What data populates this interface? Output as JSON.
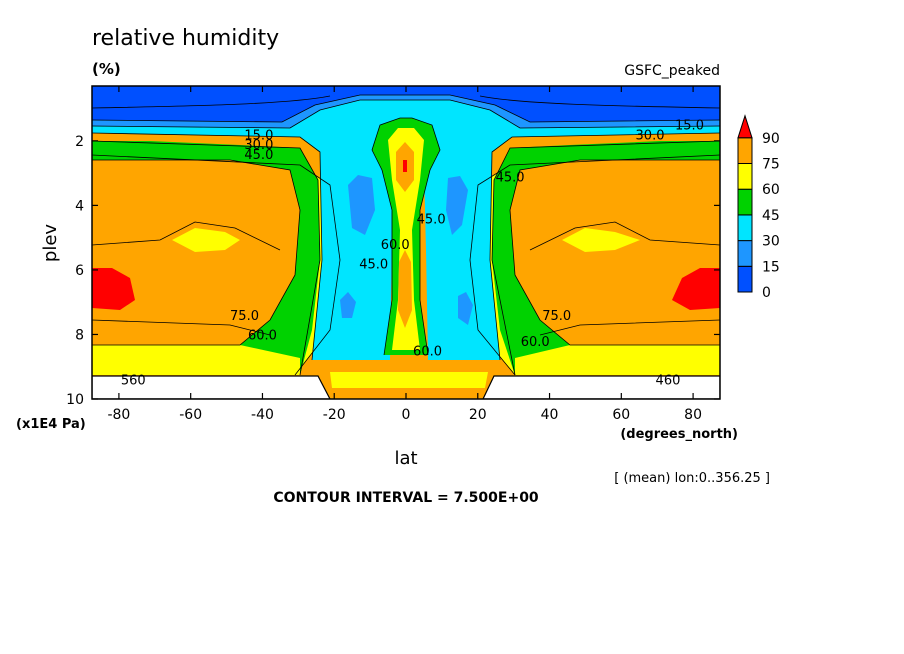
{
  "chart_data": {
    "type": "heatmap",
    "title": "relative humidity",
    "units": "(%)",
    "dataset": "GSFC_peaked",
    "xlabel": "lat",
    "xunits": "(degrees_north)",
    "ylabel": "plev",
    "yunits": "(x1E4 Pa)",
    "xlim": [
      -87.5,
      87.5
    ],
    "ylim": [
      10,
      0.3
    ],
    "xticks": [
      -80,
      -60,
      -40,
      -20,
      0,
      20,
      40,
      60,
      80
    ],
    "yticks": [
      2,
      4,
      6,
      8,
      10
    ],
    "note": "[ (mean) lon:0..356.25 ]",
    "contour_interval_text": "CONTOUR INTERVAL = 7.500E+00",
    "colorbar": {
      "levels": [
        0,
        15,
        30,
        45,
        60,
        75,
        90
      ],
      "colors": [
        "#0050ff",
        "#1e96ff",
        "#00e5ff",
        "#00d200",
        "#ffff00",
        "#ffa500",
        "#ff0000"
      ]
    },
    "contour_labels": [
      {
        "text": "15.0",
        "lat": -41,
        "plev": 1.8
      },
      {
        "text": "30.0",
        "lat": -41,
        "plev": 2.1
      },
      {
        "text": "45.0",
        "lat": -41,
        "plev": 2.4
      },
      {
        "text": "30.0",
        "lat": 68,
        "plev": 1.8
      },
      {
        "text": "15.0",
        "lat": 79,
        "plev": 1.5
      },
      {
        "text": "45.0",
        "lat": 29,
        "plev": 3.1
      },
      {
        "text": "45.0",
        "lat": 7,
        "plev": 4.4
      },
      {
        "text": "45.0",
        "lat": -9,
        "plev": 5.8
      },
      {
        "text": "60.0",
        "lat": -3,
        "plev": 5.2
      },
      {
        "text": "75.0",
        "lat": -45,
        "plev": 7.4
      },
      {
        "text": "60.0",
        "lat": -40,
        "plev": 8.0
      },
      {
        "text": "75.0",
        "lat": 42,
        "plev": 7.4
      },
      {
        "text": "60.0",
        "lat": 36,
        "plev": 8.2
      },
      {
        "text": "60.0",
        "lat": 6,
        "plev": 8.5
      },
      {
        "text": "560",
        "lat": -76,
        "plev": 9.4
      },
      {
        "text": "460",
        "lat": 73,
        "plev": 9.4
      }
    ]
  }
}
